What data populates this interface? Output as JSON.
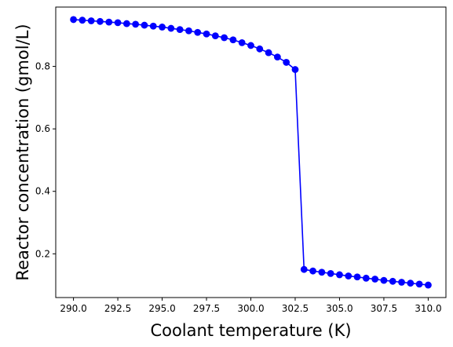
{
  "chart_data": {
    "type": "line",
    "title": "",
    "xlabel": "Coolant temperature (K)",
    "ylabel": "Reactor concentration (gmol/L)",
    "xlim": [
      289.0,
      311.0
    ],
    "ylim": [
      0.06,
      0.99
    ],
    "grid": false,
    "x_ticks": [
      290.0,
      292.5,
      295.0,
      297.5,
      300.0,
      302.5,
      305.0,
      307.5,
      310.0
    ],
    "x_tick_labels": [
      "290.0",
      "292.5",
      "295.0",
      "297.5",
      "300.0",
      "302.5",
      "305.0",
      "307.5",
      "310.0"
    ],
    "y_ticks": [
      0.2,
      0.4,
      0.6,
      0.8
    ],
    "y_tick_labels": [
      "0.2",
      "0.4",
      "0.6",
      "0.8"
    ],
    "series": [
      {
        "color": "#0000ff",
        "marker": "circle",
        "x": [
          290.0,
          290.5,
          291.0,
          291.5,
          292.0,
          292.5,
          293.0,
          293.5,
          294.0,
          294.5,
          295.0,
          295.5,
          296.0,
          296.5,
          297.0,
          297.5,
          298.0,
          298.5,
          299.0,
          299.5,
          300.0,
          300.5,
          301.0,
          301.5,
          302.0,
          302.5,
          303.0,
          303.5,
          304.0,
          304.5,
          305.0,
          305.5,
          306.0,
          306.5,
          307.0,
          307.5,
          308.0,
          308.5,
          309.0,
          309.5,
          310.0
        ],
        "y": [
          0.95,
          0.948,
          0.946,
          0.944,
          0.942,
          0.94,
          0.937,
          0.935,
          0.932,
          0.929,
          0.926,
          0.922,
          0.918,
          0.914,
          0.909,
          0.904,
          0.898,
          0.892,
          0.885,
          0.876,
          0.867,
          0.856,
          0.844,
          0.83,
          0.813,
          0.79,
          0.15,
          0.145,
          0.141,
          0.137,
          0.133,
          0.129,
          0.126,
          0.122,
          0.119,
          0.115,
          0.112,
          0.109,
          0.106,
          0.103,
          0.1
        ]
      }
    ]
  }
}
